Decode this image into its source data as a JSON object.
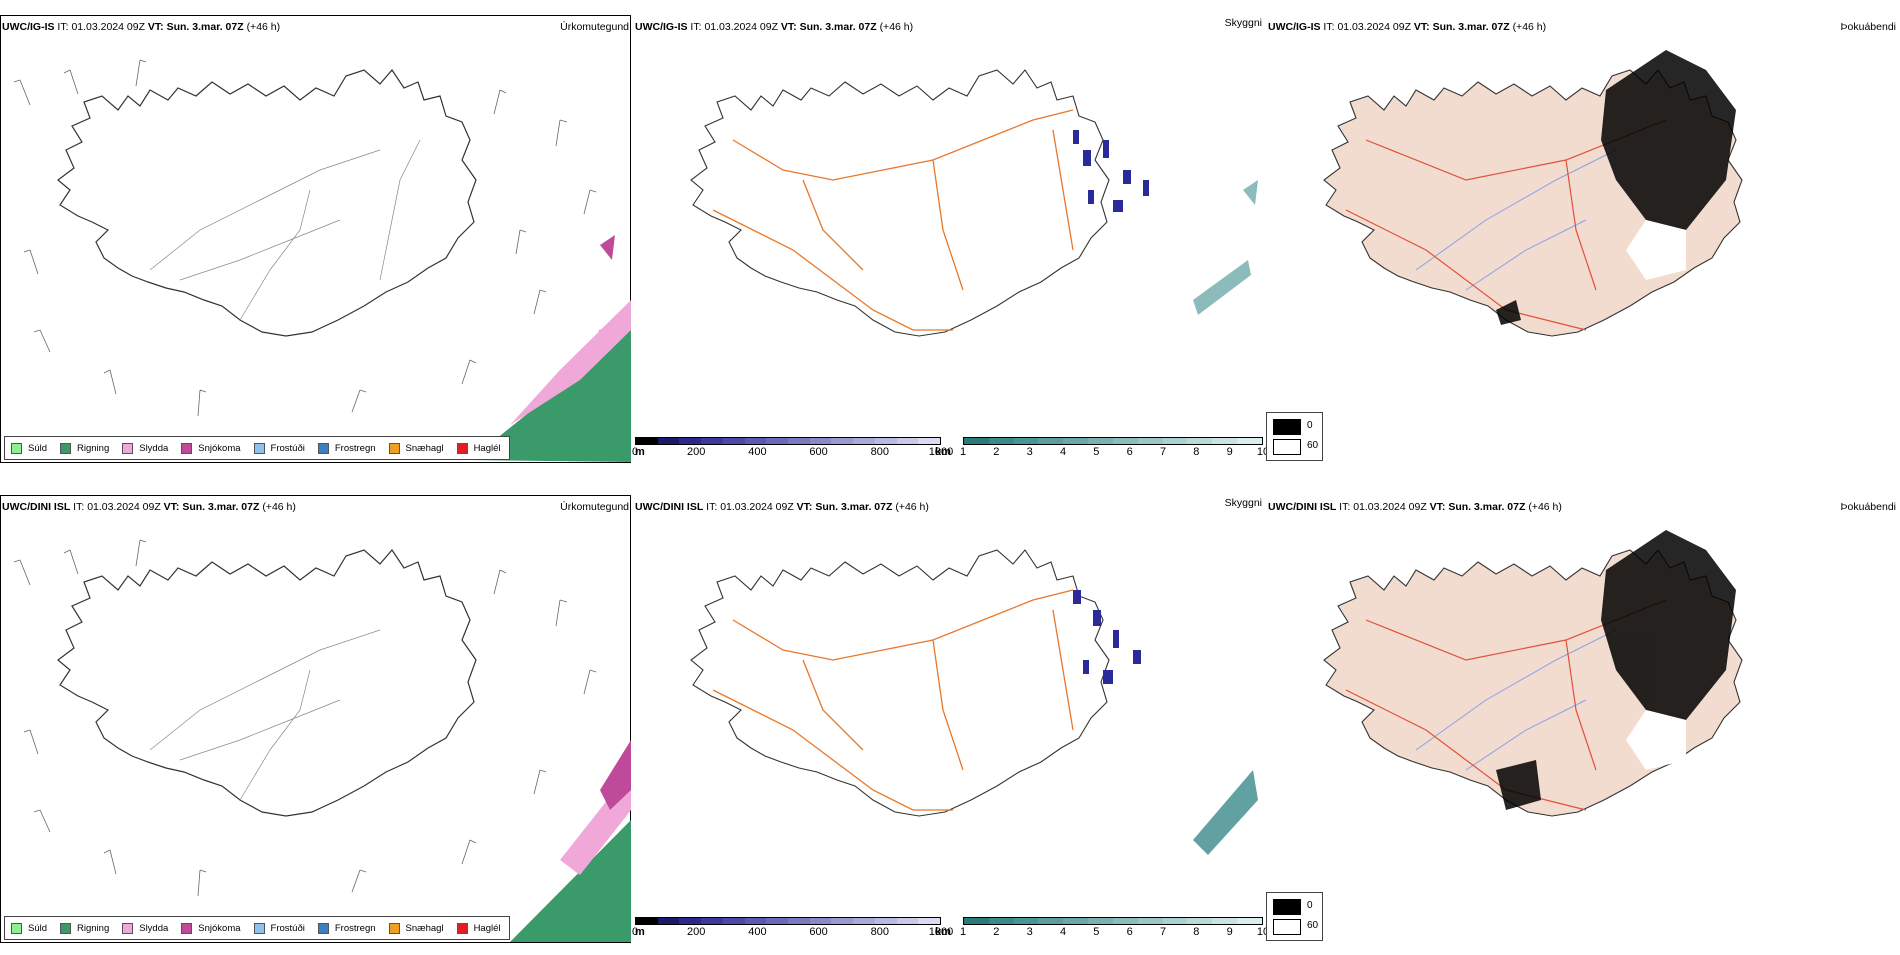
{
  "rows": [
    {
      "precip": {
        "model": "UWC/IG-IS",
        "it_label": "IT:",
        "it": "01.03.2024 09Z",
        "vt_label": "VT:",
        "vt": "Sun. 3.mar. 07Z",
        "lead": "(+46 h)",
        "title": "Úrkomutegund"
      },
      "vis": {
        "model": "UWC/IG-IS",
        "it_label": "IT:",
        "it": "01.03.2024 09Z",
        "vt_label": "VT:",
        "vt": "Sun. 3.mar. 07Z",
        "lead": "(+46 h)",
        "title": "Skyggni"
      },
      "fog": {
        "model": "UWC/IG-IS",
        "it_label": "IT:",
        "it": "01.03.2024 09Z",
        "vt_label": "VT:",
        "vt": "Sun. 3.mar. 07Z",
        "lead": "(+46 h)",
        "title": "Þokuábendi"
      }
    },
    {
      "precip": {
        "model": "UWC/DINI ISL",
        "it_label": "IT:",
        "it": "01.03.2024 09Z",
        "vt_label": "VT:",
        "vt": "Sun. 3.mar. 07Z",
        "lead": "(+46 h)",
        "title": "Úrkomutegund"
      },
      "vis": {
        "model": "UWC/DINI ISL",
        "it_label": "IT:",
        "it": "01.03.2024 09Z",
        "vt_label": "VT:",
        "vt": "Sun. 3.mar. 07Z",
        "lead": "(+46 h)",
        "title": "Skyggni"
      },
      "fog": {
        "model": "UWC/DINI ISL",
        "it_label": "IT:",
        "it": "01.03.2024 09Z",
        "vt_label": "VT:",
        "vt": "Sun. 3.mar. 07Z",
        "lead": "(+46 h)",
        "title": "Þokuábendi"
      }
    }
  ],
  "precip_legend": [
    {
      "label": "Súld",
      "color": "#90ee90"
    },
    {
      "label": "Rigning",
      "color": "#3a9a6a"
    },
    {
      "label": "Slydda",
      "color": "#f0a8d8"
    },
    {
      "label": "Snjókoma",
      "color": "#c04a9a"
    },
    {
      "label": "Frostúði",
      "color": "#90c0f0"
    },
    {
      "label": "Frostregn",
      "color": "#3a80c0"
    },
    {
      "label": "Snæhagl",
      "color": "#f0a020"
    },
    {
      "label": "Haglél",
      "color": "#e02020"
    }
  ],
  "vis_bar_m": {
    "unit": "m",
    "ticks": [
      "0",
      "200",
      "400",
      "600",
      "800",
      "1000"
    ],
    "colors": [
      "#000000",
      "#1a1a6a",
      "#2a2a8a",
      "#3a3a9a",
      "#4a4aa8",
      "#5a5ab0",
      "#6a6ab8",
      "#7a7ac0",
      "#8a8ac8",
      "#9a9ad0",
      "#aaaad8",
      "#babae0",
      "#cacae8",
      "#dadaf0"
    ]
  },
  "vis_bar_km": {
    "unit": "km",
    "ticks": [
      "1",
      "2",
      "3",
      "4",
      "5",
      "6",
      "7",
      "8",
      "9",
      "10"
    ],
    "colors": [
      "#2a7a7a",
      "#3a8a8a",
      "#4a9494",
      "#5a9e9e",
      "#6aa8a8",
      "#7ab2b2",
      "#8abcbc",
      "#9ac6c6",
      "#aad0d0",
      "#badada",
      "#cae4e4",
      "#daeeee"
    ]
  },
  "fog_legend": [
    {
      "label": "0",
      "color": "#000000"
    },
    {
      "label": "60",
      "color": "#ffffff"
    }
  ],
  "colors": {
    "land_fog": "#f2dcd0",
    "roads": "#e8782a",
    "rivers": "#8aa0e8",
    "roads_fog": "#e0503a"
  }
}
